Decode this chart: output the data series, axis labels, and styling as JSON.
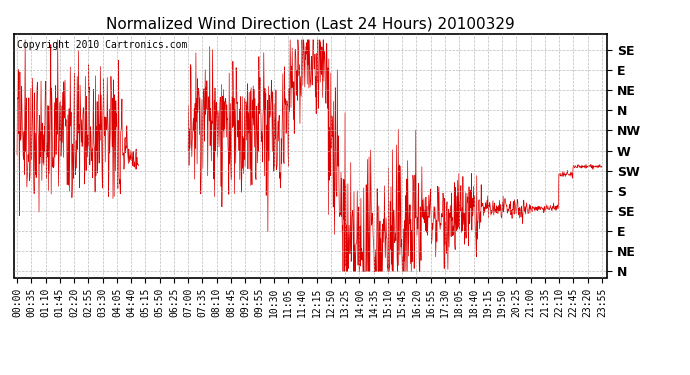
{
  "title": "Normalized Wind Direction (Last 24 Hours) 20100329",
  "copyright": "Copyright 2010 Cartronics.com",
  "line_color": "#dd0000",
  "background_color": "#ffffff",
  "grid_color": "#b0b0b0",
  "ytick_labels_right": [
    "SE",
    "E",
    "NE",
    "N",
    "NW",
    "W",
    "SW",
    "S",
    "SE",
    "E",
    "NE",
    "N"
  ],
  "ytick_values": [
    11,
    10,
    9,
    8,
    7,
    6,
    5,
    4,
    3,
    2,
    1,
    0
  ],
  "xtick_labels": [
    "00:00",
    "00:35",
    "01:10",
    "01:45",
    "02:20",
    "02:55",
    "03:30",
    "04:05",
    "04:40",
    "05:15",
    "05:50",
    "06:25",
    "07:00",
    "07:35",
    "08:10",
    "08:45",
    "09:20",
    "09:55",
    "10:30",
    "11:05",
    "11:40",
    "12:15",
    "12:50",
    "13:25",
    "14:00",
    "14:35",
    "15:10",
    "15:45",
    "16:20",
    "16:55",
    "17:30",
    "18:05",
    "18:40",
    "19:15",
    "19:50",
    "20:25",
    "21:00",
    "21:35",
    "22:10",
    "22:45",
    "23:20",
    "23:55"
  ],
  "ylim": [
    -0.3,
    11.8
  ],
  "xlim": [
    -8,
    1448
  ],
  "title_fontsize": 11,
  "tick_fontsize": 7,
  "copyright_fontsize": 7,
  "figsize": [
    6.9,
    3.75
  ],
  "dpi": 100
}
